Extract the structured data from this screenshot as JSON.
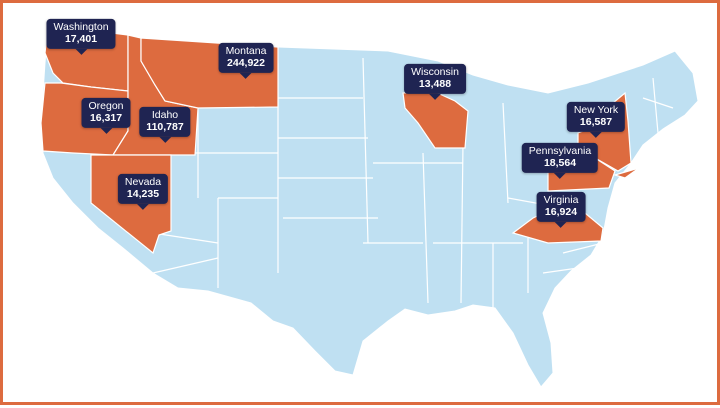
{
  "colors": {
    "border": "#dd6b3f",
    "base_state": "#bfe0f2",
    "highlight_state": "#dd6b3f",
    "state_outline": "#ffffff",
    "label_background": "#1f2452",
    "label_text": "#ffffff"
  },
  "states": [
    {
      "name": "Washington",
      "value": "17,401",
      "highlighted": true
    },
    {
      "name": "Montana",
      "value": "244,922",
      "highlighted": true
    },
    {
      "name": "Oregon",
      "value": "16,317",
      "highlighted": true
    },
    {
      "name": "Idaho",
      "value": "110,787",
      "highlighted": true
    },
    {
      "name": "Nevada",
      "value": "14,235",
      "highlighted": true
    },
    {
      "name": "Wisconsin",
      "value": "13,488",
      "highlighted": true
    },
    {
      "name": "New York",
      "value": "16,587",
      "highlighted": true
    },
    {
      "name": "Pennsylvania",
      "value": "18,564",
      "highlighted": true
    },
    {
      "name": "Virginia",
      "value": "16,924",
      "highlighted": true
    }
  ]
}
